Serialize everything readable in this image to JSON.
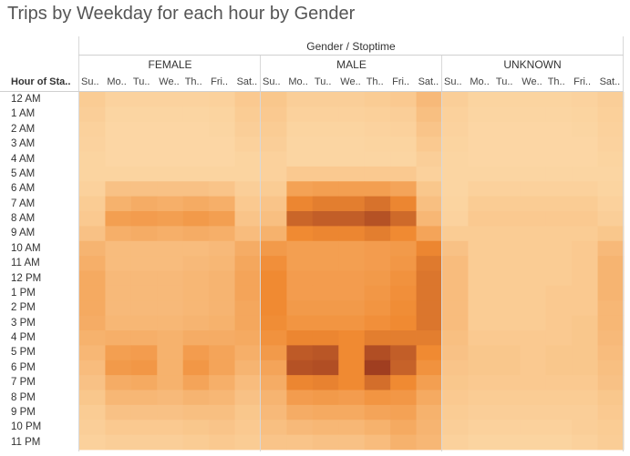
{
  "chart_data": {
    "type": "heatmap",
    "title": "Trips by Weekday for each hour by Gender",
    "column_header": "Gender / Stoptime",
    "row_header": "Hour of Sta..",
    "groups": [
      "FEMALE",
      "MALE",
      "UNKNOWN"
    ],
    "days": [
      "Su..",
      "Mo..",
      "Tu..",
      "We..",
      "Th..",
      "Fri..",
      "Sat.."
    ],
    "hours": [
      "12 AM",
      "1 AM",
      "2 AM",
      "3 AM",
      "4 AM",
      "5 AM",
      "6 AM",
      "7 AM",
      "8 AM",
      "9 AM",
      "10 AM",
      "11 AM",
      "12 PM",
      "1 PM",
      "2 PM",
      "3 PM",
      "4 PM",
      "5 PM",
      "6 PM",
      "7 PM",
      "8 PM",
      "9 PM",
      "10 PM",
      "11 PM"
    ],
    "value_scale": "relative trip count 0-100",
    "values": {
      "FEMALE": [
        [
          10,
          5,
          5,
          5,
          5,
          6,
          12
        ],
        [
          8,
          3,
          3,
          3,
          3,
          4,
          10
        ],
        [
          6,
          2,
          2,
          2,
          2,
          3,
          8
        ],
        [
          5,
          2,
          2,
          2,
          2,
          2,
          6
        ],
        [
          4,
          2,
          2,
          2,
          2,
          2,
          4
        ],
        [
          4,
          4,
          4,
          4,
          4,
          4,
          4
        ],
        [
          6,
          18,
          18,
          18,
          18,
          16,
          8
        ],
        [
          10,
          30,
          34,
          32,
          35,
          32,
          12
        ],
        [
          12,
          44,
          46,
          44,
          48,
          44,
          16
        ],
        [
          18,
          32,
          34,
          32,
          34,
          32,
          22
        ],
        [
          28,
          22,
          22,
          22,
          22,
          24,
          34
        ],
        [
          32,
          22,
          22,
          22,
          24,
          26,
          38
        ],
        [
          36,
          24,
          24,
          24,
          26,
          28,
          40
        ],
        [
          36,
          24,
          24,
          24,
          26,
          28,
          40
        ],
        [
          36,
          24,
          24,
          24,
          26,
          28,
          38
        ],
        [
          34,
          26,
          26,
          26,
          28,
          30,
          38
        ],
        [
          30,
          32,
          32,
          30,
          34,
          34,
          36
        ],
        [
          26,
          44,
          46,
          30,
          46,
          40,
          32
        ],
        [
          22,
          48,
          50,
          30,
          50,
          40,
          28
        ],
        [
          18,
          34,
          36,
          30,
          40,
          32,
          22
        ],
        [
          14,
          26,
          26,
          24,
          28,
          26,
          18
        ],
        [
          10,
          18,
          18,
          18,
          20,
          20,
          14
        ],
        [
          8,
          12,
          12,
          12,
          14,
          16,
          12
        ],
        [
          6,
          8,
          8,
          8,
          10,
          12,
          10
        ]
      ],
      "MALE": [
        [
          14,
          8,
          8,
          8,
          10,
          12,
          24
        ],
        [
          12,
          6,
          6,
          6,
          7,
          8,
          20
        ],
        [
          10,
          4,
          4,
          4,
          5,
          6,
          16
        ],
        [
          8,
          3,
          3,
          3,
          4,
          4,
          12
        ],
        [
          6,
          3,
          3,
          3,
          3,
          3,
          8
        ],
        [
          6,
          12,
          12,
          12,
          12,
          12,
          6
        ],
        [
          10,
          42,
          44,
          44,
          44,
          40,
          14
        ],
        [
          16,
          62,
          66,
          66,
          72,
          62,
          20
        ],
        [
          20,
          78,
          82,
          82,
          88,
          76,
          26
        ],
        [
          30,
          60,
          62,
          62,
          66,
          60,
          40
        ],
        [
          48,
          44,
          44,
          44,
          46,
          48,
          62
        ],
        [
          56,
          44,
          44,
          44,
          46,
          50,
          68
        ],
        [
          60,
          46,
          46,
          46,
          48,
          54,
          70
        ],
        [
          60,
          46,
          46,
          46,
          50,
          56,
          70
        ],
        [
          60,
          48,
          48,
          48,
          52,
          58,
          70
        ],
        [
          58,
          52,
          52,
          52,
          56,
          60,
          70
        ],
        [
          54,
          62,
          62,
          60,
          66,
          66,
          66
        ],
        [
          48,
          84,
          86,
          60,
          90,
          82,
          60
        ],
        [
          40,
          88,
          90,
          60,
          98,
          80,
          54
        ],
        [
          34,
          62,
          64,
          60,
          74,
          60,
          44
        ],
        [
          28,
          46,
          48,
          46,
          52,
          50,
          36
        ],
        [
          24,
          34,
          36,
          36,
          40,
          42,
          30
        ],
        [
          20,
          24,
          26,
          26,
          30,
          36,
          28
        ],
        [
          16,
          16,
          18,
          18,
          22,
          30,
          26
        ]
      ],
      "UNKNOWN": [
        [
          8,
          4,
          4,
          4,
          4,
          5,
          8
        ],
        [
          6,
          3,
          3,
          3,
          3,
          4,
          7
        ],
        [
          5,
          2,
          2,
          2,
          2,
          3,
          6
        ],
        [
          4,
          2,
          2,
          2,
          2,
          2,
          5
        ],
        [
          3,
          2,
          2,
          2,
          2,
          2,
          4
        ],
        [
          3,
          3,
          3,
          3,
          3,
          3,
          3
        ],
        [
          3,
          6,
          6,
          6,
          6,
          6,
          4
        ],
        [
          4,
          10,
          10,
          10,
          10,
          10,
          6
        ],
        [
          5,
          12,
          12,
          12,
          12,
          12,
          8
        ],
        [
          10,
          10,
          10,
          10,
          10,
          10,
          14
        ],
        [
          18,
          10,
          10,
          10,
          10,
          12,
          24
        ],
        [
          22,
          10,
          10,
          10,
          10,
          12,
          28
        ],
        [
          22,
          10,
          10,
          10,
          10,
          12,
          28
        ],
        [
          22,
          10,
          10,
          10,
          12,
          12,
          28
        ],
        [
          22,
          10,
          10,
          10,
          12,
          12,
          26
        ],
        [
          22,
          10,
          10,
          10,
          12,
          14,
          26
        ],
        [
          20,
          12,
          12,
          12,
          12,
          14,
          24
        ],
        [
          18,
          14,
          14,
          12,
          14,
          14,
          22
        ],
        [
          16,
          14,
          14,
          12,
          14,
          14,
          20
        ],
        [
          14,
          12,
          12,
          12,
          12,
          12,
          18
        ],
        [
          12,
          10,
          10,
          10,
          10,
          10,
          14
        ],
        [
          10,
          8,
          8,
          8,
          8,
          8,
          12
        ],
        [
          8,
          6,
          6,
          6,
          6,
          8,
          10
        ],
        [
          6,
          4,
          4,
          4,
          4,
          6,
          9
        ]
      ]
    },
    "color_low": "#fcd9a8",
    "color_mid": "#f08a32",
    "color_high": "#9c3a1f"
  }
}
